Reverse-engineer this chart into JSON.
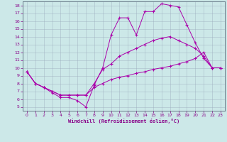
{
  "xlabel": "Windchill (Refroidissement éolien,°C)",
  "background_color": "#cce8e8",
  "line_color": "#aa00aa",
  "grid_color": "#99aabb",
  "xlim": [
    -0.5,
    23.5
  ],
  "ylim": [
    4.5,
    18.5
  ],
  "xticks": [
    0,
    1,
    2,
    3,
    4,
    5,
    6,
    7,
    8,
    9,
    10,
    11,
    12,
    13,
    14,
    15,
    16,
    17,
    18,
    19,
    20,
    21,
    22,
    23
  ],
  "yticks": [
    5,
    6,
    7,
    8,
    9,
    10,
    11,
    12,
    13,
    14,
    15,
    16,
    17,
    18
  ],
  "lines": [
    {
      "x": [
        0,
        1,
        2,
        3,
        4,
        5,
        6,
        7,
        8,
        9,
        10,
        11,
        12,
        13,
        14,
        15,
        16,
        17,
        18,
        19,
        20,
        21,
        22,
        23
      ],
      "y": [
        9.5,
        8.0,
        7.5,
        6.8,
        6.2,
        6.2,
        5.8,
        5.0,
        7.8,
        10.0,
        14.2,
        16.4,
        16.4,
        14.2,
        17.2,
        17.2,
        18.2,
        18.0,
        17.8,
        15.5,
        13.2,
        11.2,
        10.0,
        10.0
      ]
    },
    {
      "x": [
        0,
        1,
        2,
        3,
        4,
        5,
        6,
        7,
        8,
        9,
        10,
        11,
        12,
        13,
        14,
        15,
        16,
        17,
        18,
        19,
        20,
        21,
        22,
        23
      ],
      "y": [
        9.5,
        8.0,
        7.5,
        7.0,
        6.5,
        6.5,
        6.5,
        6.5,
        8.0,
        9.8,
        10.5,
        11.5,
        12.0,
        12.5,
        13.0,
        13.5,
        13.8,
        14.0,
        13.5,
        13.0,
        12.5,
        11.5,
        10.0,
        10.0
      ]
    },
    {
      "x": [
        0,
        1,
        2,
        3,
        4,
        5,
        6,
        7,
        8,
        9,
        10,
        11,
        12,
        13,
        14,
        15,
        16,
        17,
        18,
        19,
        20,
        21,
        22,
        23
      ],
      "y": [
        9.5,
        8.0,
        7.5,
        7.0,
        6.5,
        6.5,
        6.5,
        6.5,
        7.5,
        8.0,
        8.5,
        8.8,
        9.0,
        9.3,
        9.5,
        9.8,
        10.0,
        10.2,
        10.5,
        10.8,
        11.2,
        12.0,
        10.0,
        10.0
      ]
    }
  ]
}
